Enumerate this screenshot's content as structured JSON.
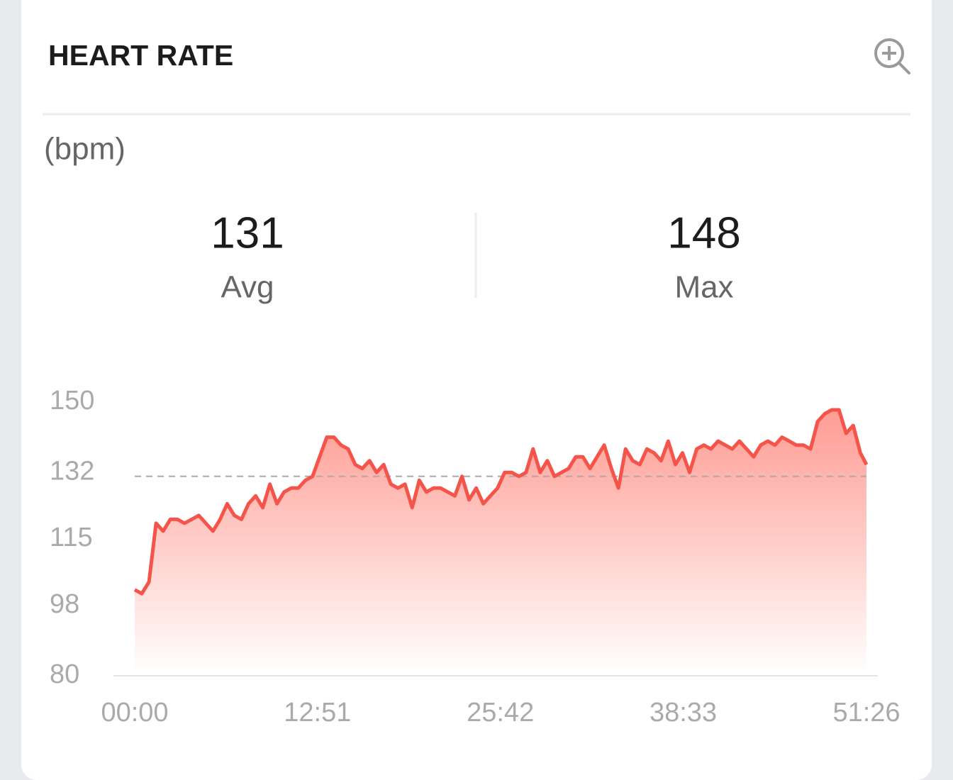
{
  "header": {
    "title": "HEART RATE"
  },
  "unit": "(bpm)",
  "stats": [
    {
      "value": 131,
      "label": "Avg"
    },
    {
      "value": 148,
      "label": "Max"
    }
  ],
  "chart_data": {
    "type": "area",
    "color": "#f5544a",
    "x": [
      0,
      30,
      60,
      90,
      120,
      150,
      180,
      210,
      240,
      270,
      300,
      330,
      360,
      390,
      420,
      450,
      480,
      510,
      540,
      570,
      600,
      630,
      660,
      690,
      720,
      750,
      780,
      810,
      840,
      870,
      900,
      930,
      960,
      990,
      1020,
      1050,
      1080,
      1110,
      1140,
      1170,
      1200,
      1230,
      1260,
      1290,
      1320,
      1350,
      1380,
      1410,
      1440,
      1470,
      1500,
      1530,
      1560,
      1590,
      1620,
      1650,
      1680,
      1710,
      1740,
      1770,
      1800,
      1830,
      1860,
      1890,
      1920,
      1950,
      1980,
      2010,
      2040,
      2070,
      2100,
      2130,
      2160,
      2190,
      2220,
      2250,
      2280,
      2310,
      2340,
      2370,
      2400,
      2430,
      2460,
      2490,
      2520,
      2550,
      2580,
      2610,
      2640,
      2670,
      2700,
      2730,
      2760,
      2790,
      2820,
      2850,
      2880,
      2910,
      2940,
      2970,
      3000,
      3030,
      3060,
      3086
    ],
    "values": [
      102,
      101,
      104,
      119,
      117,
      120,
      120,
      119,
      120,
      121,
      119,
      117,
      120,
      124,
      121,
      120,
      124,
      126,
      123,
      129,
      124,
      127,
      128,
      128,
      130,
      131,
      136,
      141,
      141,
      139,
      138,
      134,
      133,
      135,
      132,
      134,
      129,
      128,
      129,
      123,
      130,
      127,
      128,
      128,
      127,
      126,
      131,
      125,
      128,
      124,
      126,
      128,
      132,
      132,
      131,
      132,
      138,
      132,
      135,
      131,
      132,
      133,
      136,
      136,
      133,
      136,
      139,
      133,
      128,
      138,
      135,
      134,
      138,
      137,
      135,
      140,
      134,
      137,
      132,
      138,
      139,
      138,
      140,
      139,
      138,
      140,
      138,
      136,
      139,
      140,
      139,
      141,
      140,
      139,
      139,
      138,
      145,
      147,
      148,
      148,
      142,
      144,
      137,
      134
    ],
    "xlim": [
      0,
      3086
    ],
    "ylim": [
      80,
      150
    ],
    "xticks": [
      {
        "value": 0,
        "label": "00:00"
      },
      {
        "value": 771,
        "label": "12:51"
      },
      {
        "value": 1542,
        "label": "25:42"
      },
      {
        "value": 2313,
        "label": "38:33"
      },
      {
        "value": 3086,
        "label": "51:26"
      }
    ],
    "yticks": [
      80,
      98,
      115,
      132,
      150
    ]
  }
}
